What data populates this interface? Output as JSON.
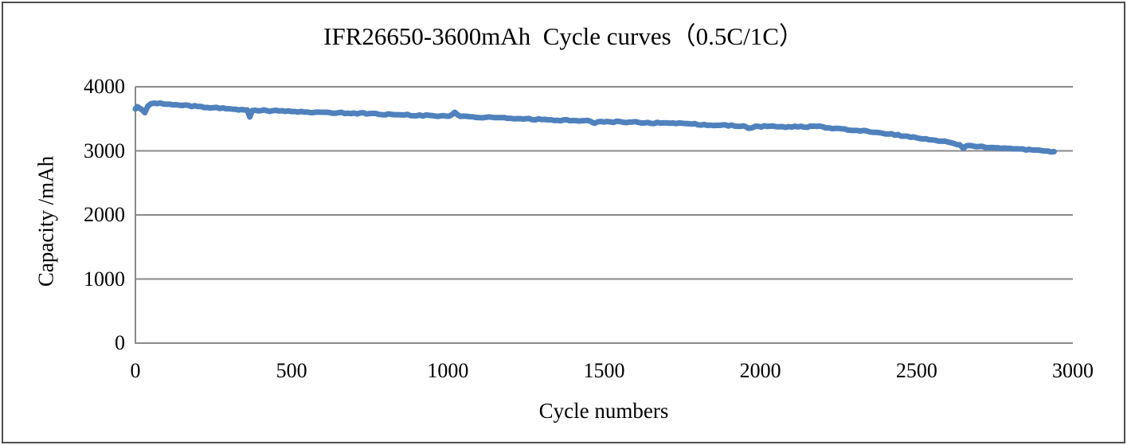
{
  "frame": {
    "border_color": "#4d4d4d"
  },
  "chart_data": {
    "type": "line",
    "title": "IFR26650-3600mAh  Cycle curves（0.5C/1C）",
    "xlabel": "Cycle numbers",
    "ylabel": "Capacity /mAh",
    "xlim": [
      0,
      3000
    ],
    "ylim": [
      0,
      4000
    ],
    "x_ticks": [
      0,
      500,
      1000,
      1500,
      2000,
      2500,
      3000
    ],
    "y_ticks": [
      0,
      1000,
      2000,
      3000,
      4000
    ],
    "grid": "horizontal-only",
    "legend": "none",
    "line_color": "#4f81bd",
    "axis_color": "#8a8a8a",
    "series": [
      {
        "name": "capacity",
        "points": [
          [
            0,
            3655
          ],
          [
            6,
            3690
          ],
          [
            14,
            3665
          ],
          [
            22,
            3640
          ],
          [
            30,
            3595
          ],
          [
            40,
            3700
          ],
          [
            50,
            3735
          ],
          [
            70,
            3738
          ],
          [
            100,
            3728
          ],
          [
            150,
            3708
          ],
          [
            200,
            3692
          ],
          [
            250,
            3675
          ],
          [
            300,
            3658
          ],
          [
            340,
            3645
          ],
          [
            358,
            3638
          ],
          [
            366,
            3528
          ],
          [
            374,
            3628
          ],
          [
            420,
            3628
          ],
          [
            480,
            3616
          ],
          [
            550,
            3606
          ],
          [
            650,
            3596
          ],
          [
            750,
            3582
          ],
          [
            850,
            3563
          ],
          [
            950,
            3550
          ],
          [
            1005,
            3542
          ],
          [
            1022,
            3602
          ],
          [
            1040,
            3538
          ],
          [
            1120,
            3522
          ],
          [
            1200,
            3508
          ],
          [
            1300,
            3490
          ],
          [
            1400,
            3473
          ],
          [
            1455,
            3464
          ],
          [
            1470,
            3430
          ],
          [
            1490,
            3458
          ],
          [
            1580,
            3448
          ],
          [
            1680,
            3433
          ],
          [
            1780,
            3418
          ],
          [
            1870,
            3398
          ],
          [
            1945,
            3390
          ],
          [
            1962,
            3350
          ],
          [
            1985,
            3385
          ],
          [
            2050,
            3378
          ],
          [
            2120,
            3374
          ],
          [
            2180,
            3382
          ],
          [
            2240,
            3352
          ],
          [
            2310,
            3318
          ],
          [
            2390,
            3276
          ],
          [
            2470,
            3228
          ],
          [
            2550,
            3172
          ],
          [
            2610,
            3128
          ],
          [
            2638,
            3095
          ],
          [
            2650,
            3040
          ],
          [
            2665,
            3085
          ],
          [
            2700,
            3068
          ],
          [
            2760,
            3048
          ],
          [
            2820,
            3032
          ],
          [
            2880,
            3012
          ],
          [
            2920,
            2996
          ],
          [
            2940,
            2988
          ]
        ]
      }
    ]
  }
}
